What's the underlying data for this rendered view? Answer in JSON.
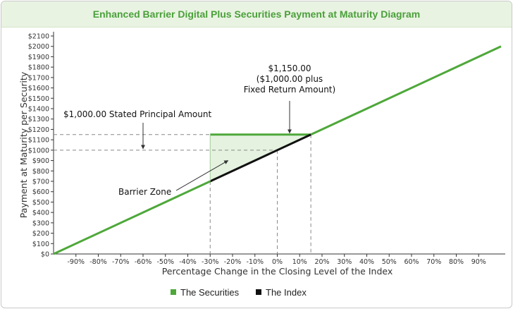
{
  "chart_data": {
    "type": "line",
    "title": "Enhanced Barrier Digital Plus Securities Payment at Maturity Diagram",
    "xlabel": "Percentage Change in the Closing Level of the Index",
    "ylabel": "Payment at Maturity per Security",
    "xlim": [
      -100,
      100
    ],
    "ylim": [
      0,
      2100
    ],
    "x_ticks": [
      -90,
      -80,
      -70,
      -60,
      -50,
      -40,
      -30,
      -20,
      -10,
      0,
      10,
      20,
      30,
      40,
      50,
      60,
      70,
      80,
      90
    ],
    "x_tick_labels": [
      "-90%",
      "-80%",
      "-70%",
      "-60%",
      "-50%",
      "-40%",
      "-30%",
      "-20%",
      "-10%",
      "0%",
      "10%",
      "20%",
      "30%",
      "40%",
      "50%",
      "60%",
      "70%",
      "80%",
      "90%"
    ],
    "y_ticks": [
      0,
      100,
      200,
      300,
      400,
      500,
      600,
      700,
      800,
      900,
      1000,
      1100,
      1200,
      1300,
      1400,
      1500,
      1600,
      1700,
      1800,
      1900,
      2000,
      2100
    ],
    "y_tick_labels": [
      "$0",
      "$100",
      "$200",
      "$300",
      "$400",
      "$500",
      "$600",
      "$700",
      "$800",
      "$900",
      "$1000",
      "$1100",
      "$1200",
      "$1300",
      "$1400",
      "$1500",
      "$1600",
      "$1700",
      "$1800",
      "$1900",
      "$2000",
      "$2100"
    ],
    "series": [
      {
        "name": "The Securities",
        "color": "#4ea83a",
        "segments": [
          [
            [
              -100,
              0
            ],
            [
              -30,
              700
            ]
          ],
          [
            [
              -30,
              1150
            ],
            [
              15,
              1150
            ]
          ],
          [
            [
              15,
              1150
            ],
            [
              100,
              2000
            ]
          ]
        ]
      },
      {
        "name": "The Index",
        "color": "#111111",
        "segments": [
          [
            [
              -30,
              700
            ],
            [
              15,
              1150
            ]
          ]
        ]
      }
    ],
    "barrier_zone": {
      "x_range": [
        -30,
        15
      ],
      "upper": 1150,
      "fill": "#e4f2df",
      "label": "Barrier Zone"
    },
    "reference_lines": {
      "horizontal": [
        1000,
        1150
      ],
      "vertical": [
        -30,
        0,
        15
      ]
    },
    "annotations": [
      {
        "text": "$1,000.00 Stated Principal Amount"
      },
      {
        "lines": [
          "$1,150.00",
          "($1,000.00 plus",
          "Fixed Return Amount)"
        ]
      }
    ],
    "legend": {
      "position": "bottom-center"
    },
    "grid": false
  }
}
